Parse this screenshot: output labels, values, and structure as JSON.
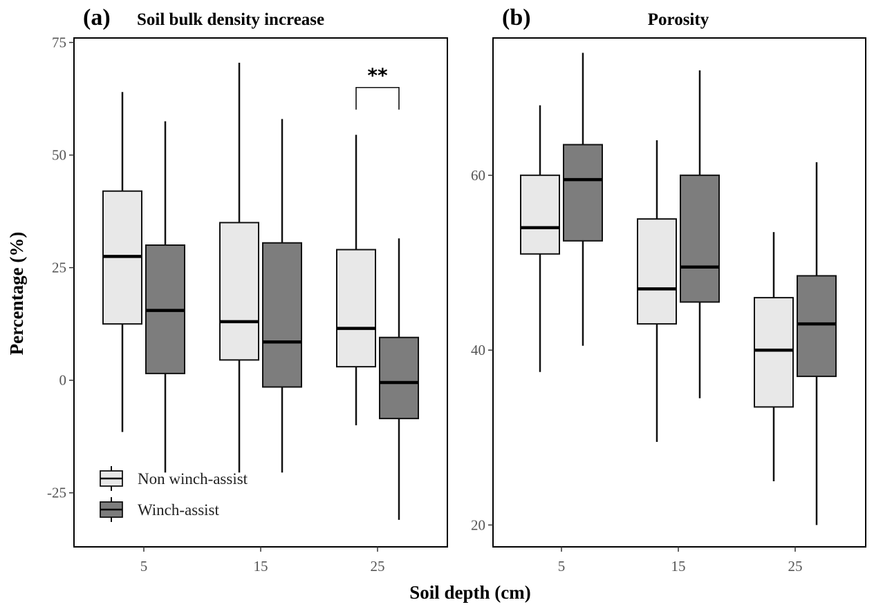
{
  "chart_data": [
    {
      "type": "box",
      "panel_tag": "(a)",
      "title": "Soil bulk density increase",
      "categories": [
        "5",
        "15",
        "25"
      ],
      "ylim": [
        -37,
        76
      ],
      "yticks": [
        75,
        50,
        25,
        0,
        -25
      ],
      "ytick_labels": [
        "75",
        "50",
        "25",
        "0",
        "-25"
      ],
      "grid": false,
      "legend": {
        "placement": "bottom-left",
        "entries": [
          {
            "label": "Non winch-assist",
            "color": "#e8e8e8"
          },
          {
            "label": "Winch-assist",
            "color": "#7d7d7d"
          }
        ]
      },
      "series": [
        {
          "name": "Non winch-assist",
          "color": "#e8e8e8",
          "boxes": [
            {
              "min": -11.5,
              "q1": 12.5,
              "median": 27.5,
              "q3": 42.0,
              "max": 64.0
            },
            {
              "min": -20.5,
              "q1": 4.5,
              "median": 13.0,
              "q3": 35.0,
              "max": 70.5
            },
            {
              "min": -10.0,
              "q1": 3.0,
              "median": 11.5,
              "q3": 29.0,
              "max": 54.5
            }
          ]
        },
        {
          "name": "Winch-assist",
          "color": "#7d7d7d",
          "boxes": [
            {
              "min": -20.5,
              "q1": 1.5,
              "median": 15.5,
              "q3": 30.0,
              "max": 57.5
            },
            {
              "min": -20.5,
              "q1": -1.5,
              "median": 8.5,
              "q3": 30.5,
              "max": 58.0
            },
            {
              "min": -31.0,
              "q1": -8.5,
              "median": -0.5,
              "q3": 9.5,
              "max": 31.5
            }
          ]
        }
      ],
      "annotations": [
        {
          "text": "**",
          "category": "25",
          "between": [
            "Non winch-assist",
            "Winch-assist"
          ],
          "bracket_y": 65.0
        }
      ]
    },
    {
      "type": "box",
      "panel_tag": "(b)",
      "title": "Porosity",
      "categories": [
        "5",
        "15",
        "25"
      ],
      "ylim": [
        17.5,
        75.7
      ],
      "yticks": [
        60,
        40,
        20
      ],
      "ytick_labels": [
        "60",
        "40",
        "20"
      ],
      "grid": false,
      "series": [
        {
          "name": "Non winch-assist",
          "color": "#e8e8e8",
          "boxes": [
            {
              "min": 37.5,
              "q1": 51.0,
              "median": 54.0,
              "q3": 60.0,
              "max": 68.0
            },
            {
              "min": 29.5,
              "q1": 43.0,
              "median": 47.0,
              "q3": 55.0,
              "max": 64.0
            },
            {
              "min": 25.0,
              "q1": 33.5,
              "median": 40.0,
              "q3": 46.0,
              "max": 53.5
            }
          ]
        },
        {
          "name": "Winch-assist",
          "color": "#7d7d7d",
          "boxes": [
            {
              "min": 40.5,
              "q1": 52.5,
              "median": 59.5,
              "q3": 63.5,
              "max": 74.0
            },
            {
              "min": 34.5,
              "q1": 45.5,
              "median": 49.5,
              "q3": 60.0,
              "max": 72.0
            },
            {
              "min": 20.0,
              "q1": 37.0,
              "median": 43.0,
              "q3": 48.5,
              "max": 61.5
            }
          ]
        }
      ]
    }
  ],
  "axis_titles": {
    "y": "Percentage (%)",
    "x": "Soil depth (cm)"
  }
}
